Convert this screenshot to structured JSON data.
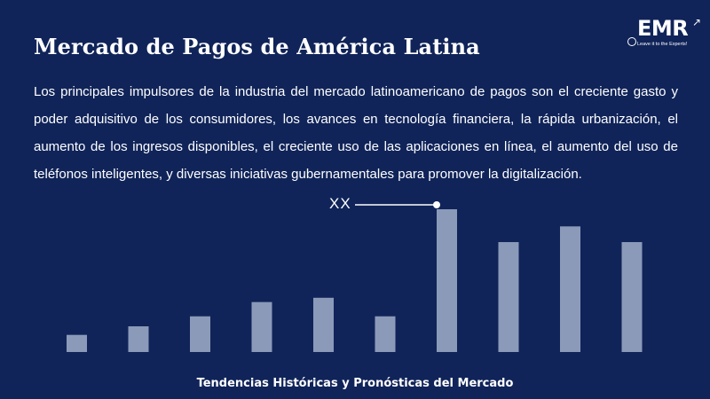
{
  "slide": {
    "title": "Mercado de Pagos de América Latina",
    "description": "Los principales impulsores de la industria del mercado latinoamericano de pagos son el creciente gasto y poder adquisitivo de los consumidores, los avances en tecnología financiera, la rápida urbanización, el aumento de los ingresos disponibles, el creciente uso de las aplicaciones en línea, el aumento del uso de teléfonos inteligentes, y diversas iniciativas gubernamentales para promover la digitalización.",
    "footer": "Tendencias Históricas y Pronósticas del Mercado"
  },
  "logo": {
    "text": "EMR",
    "tagline": "Leave it to the Experts!"
  },
  "colors": {
    "background": "#102459",
    "bar": "#8b9ab9",
    "text": "#ffffff"
  },
  "chart_data": {
    "type": "bar",
    "categories": [
      "",
      "",
      "",
      "",
      "",
      "",
      "",
      "",
      "",
      ""
    ],
    "values": [
      12,
      18,
      25,
      35,
      38,
      25,
      100,
      77,
      88,
      77
    ],
    "ylim": [
      0,
      100
    ],
    "grid": false,
    "annotation": {
      "text": "XX",
      "bar_index": 6
    }
  }
}
